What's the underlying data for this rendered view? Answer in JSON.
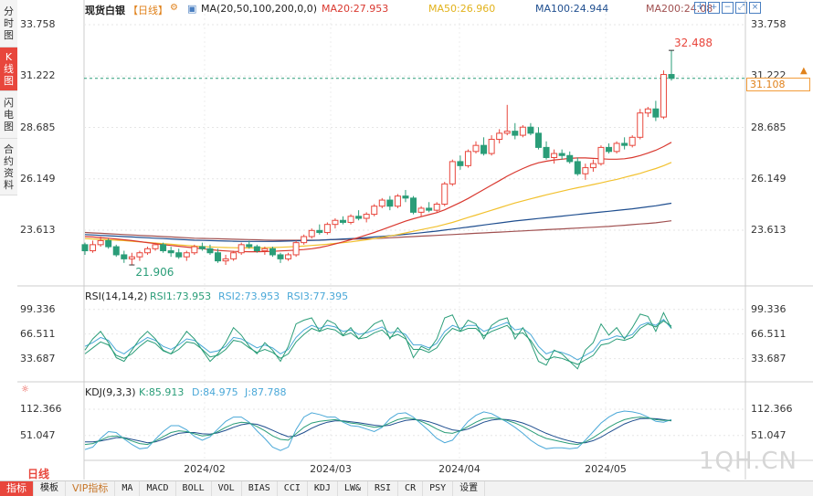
{
  "side_tabs": [
    {
      "label": [
        "分",
        "时",
        "图"
      ],
      "active": false
    },
    {
      "label": [
        "K",
        "线",
        "图"
      ],
      "active": true
    },
    {
      "label": [
        "闪",
        "电",
        "图"
      ],
      "active": false
    },
    {
      "label": [
        "合",
        "约",
        "资",
        "料"
      ],
      "active": false
    }
  ],
  "header": {
    "instrument": "现货白银",
    "period": "【日线】",
    "ma_settings": "MA(20,50,100,200,0,0)",
    "ma20": "MA20:27.953",
    "ma50": "MA50:26.960",
    "ma100": "MA100:24.944",
    "ma200": "MA200:24.08"
  },
  "toolbar_icons": [
    "crosshair-icon",
    "zoom-in-icon",
    "zoom-out-icon",
    "expand-icon",
    "close-icon"
  ],
  "colors": {
    "up": "#e8463c",
    "down": "#2a9d78",
    "ma20": "#d9382f",
    "ma50": "#f2c12e",
    "ma100": "#1f4e8f",
    "ma200": "#a05050",
    "rsi1": "#2a9d78",
    "rsi2": "#4aa8d8",
    "rsi3": "#2a9d78",
    "accent_orange": "#e0821c"
  },
  "price_axis": {
    "ticks": [
      "33.758",
      "31.222",
      "28.685",
      "26.149",
      "23.613"
    ],
    "current_price": "31.108",
    "high_label": "32.488",
    "low_label": "21.906"
  },
  "date_axis": [
    "2024/02",
    "2024/03",
    "2024/04",
    "2024/05"
  ],
  "rsi_panel": {
    "title": "RSI(14,14,2)",
    "rsi1": "RSI1:73.953",
    "rsi2": "RSI2:73.953",
    "rsi3": "RSI3:77.395",
    "ticks": [
      "99.336",
      "66.511",
      "33.687"
    ]
  },
  "kdj_panel": {
    "title": "KDJ(9,3,3)",
    "k": "K:85.913",
    "d": "D:84.975",
    "j": "J:87.788",
    "ticks": [
      "112.366",
      "51.047"
    ]
  },
  "bottom_bar": {
    "period_tag": "日线",
    "buttons": [
      "指标",
      "模板",
      "VIP指标",
      "MA",
      "MACD",
      "BOLL",
      "VOL",
      "BIAS",
      "CCI",
      "KDJ",
      "LW&",
      "RSI",
      "CR",
      "PSY",
      "设置"
    ]
  },
  "watermark": "1QH.CN",
  "chart_data": {
    "type": "candlestick",
    "title": "现货白银 【日线】",
    "ylim": [
      21.0,
      34.3
    ],
    "ohlc": [
      [
        22.9,
        23.0,
        22.4,
        22.6
      ],
      [
        22.6,
        23.1,
        22.5,
        22.9
      ],
      [
        22.9,
        23.3,
        22.8,
        23.1
      ],
      [
        23.1,
        23.2,
        22.7,
        22.8
      ],
      [
        22.8,
        22.9,
        22.3,
        22.4
      ],
      [
        22.4,
        22.6,
        22.0,
        22.2
      ],
      [
        22.2,
        22.5,
        21.9,
        22.3
      ],
      [
        22.3,
        22.6,
        22.1,
        22.5
      ],
      [
        22.5,
        22.8,
        22.4,
        22.7
      ],
      [
        22.7,
        23.0,
        22.6,
        22.9
      ],
      [
        22.9,
        23.0,
        22.5,
        22.6
      ],
      [
        22.6,
        22.8,
        22.3,
        22.5
      ],
      [
        22.5,
        22.7,
        22.2,
        22.3
      ],
      [
        22.3,
        22.6,
        22.1,
        22.5
      ],
      [
        22.5,
        22.9,
        22.4,
        22.8
      ],
      [
        22.8,
        23.0,
        22.6,
        22.7
      ],
      [
        22.7,
        22.9,
        22.4,
        22.5
      ],
      [
        22.5,
        22.7,
        22.0,
        22.1
      ],
      [
        22.1,
        22.4,
        21.9,
        22.2
      ],
      [
        22.2,
        22.6,
        22.1,
        22.5
      ],
      [
        22.5,
        23.0,
        22.4,
        22.9
      ],
      [
        22.9,
        23.1,
        22.7,
        22.8
      ],
      [
        22.8,
        22.9,
        22.5,
        22.6
      ],
      [
        22.6,
        22.8,
        22.4,
        22.7
      ],
      [
        22.7,
        22.8,
        22.3,
        22.4
      ],
      [
        22.4,
        22.5,
        22.0,
        22.2
      ],
      [
        22.2,
        22.5,
        22.1,
        22.4
      ],
      [
        22.4,
        23.1,
        22.3,
        23.0
      ],
      [
        23.0,
        23.4,
        22.9,
        23.3
      ],
      [
        23.3,
        23.7,
        23.2,
        23.6
      ],
      [
        23.6,
        23.9,
        23.4,
        23.5
      ],
      [
        23.5,
        24.0,
        23.4,
        23.9
      ],
      [
        23.9,
        24.2,
        23.7,
        24.1
      ],
      [
        24.1,
        24.3,
        23.9,
        24.0
      ],
      [
        24.0,
        24.4,
        23.9,
        24.3
      ],
      [
        24.3,
        24.6,
        24.1,
        24.2
      ],
      [
        24.2,
        24.5,
        24.0,
        24.4
      ],
      [
        24.4,
        24.9,
        24.3,
        24.8
      ],
      [
        24.8,
        25.2,
        24.7,
        25.1
      ],
      [
        25.1,
        25.3,
        24.6,
        24.8
      ],
      [
        24.8,
        25.4,
        24.7,
        25.3
      ],
      [
        25.3,
        25.6,
        25.0,
        25.2
      ],
      [
        25.2,
        25.3,
        24.4,
        24.5
      ],
      [
        24.5,
        24.8,
        24.3,
        24.7
      ],
      [
        24.7,
        25.0,
        24.5,
        24.6
      ],
      [
        24.6,
        25.0,
        24.5,
        24.9
      ],
      [
        24.9,
        26.0,
        24.8,
        25.9
      ],
      [
        25.9,
        27.1,
        25.8,
        27.0
      ],
      [
        27.0,
        27.3,
        26.6,
        26.8
      ],
      [
        26.8,
        27.6,
        26.7,
        27.5
      ],
      [
        27.5,
        28.0,
        27.4,
        27.8
      ],
      [
        27.8,
        28.2,
        27.3,
        27.4
      ],
      [
        27.4,
        28.3,
        27.3,
        28.1
      ],
      [
        28.1,
        28.6,
        27.9,
        28.4
      ],
      [
        28.4,
        29.8,
        28.3,
        28.5
      ],
      [
        28.5,
        28.9,
        28.1,
        28.3
      ],
      [
        28.3,
        28.8,
        28.2,
        28.7
      ],
      [
        28.7,
        28.9,
        28.3,
        28.4
      ],
      [
        28.4,
        28.7,
        27.6,
        27.7
      ],
      [
        27.7,
        28.0,
        27.1,
        27.2
      ],
      [
        27.2,
        27.6,
        26.9,
        27.4
      ],
      [
        27.4,
        27.6,
        27.1,
        27.3
      ],
      [
        27.3,
        27.5,
        26.9,
        27.0
      ],
      [
        27.0,
        27.2,
        26.3,
        26.4
      ],
      [
        26.4,
        26.9,
        26.1,
        26.7
      ],
      [
        26.7,
        27.1,
        26.5,
        26.9
      ],
      [
        26.9,
        27.8,
        26.8,
        27.7
      ],
      [
        27.7,
        27.9,
        27.4,
        27.5
      ],
      [
        27.5,
        28.0,
        27.4,
        27.9
      ],
      [
        27.9,
        28.2,
        27.6,
        27.8
      ],
      [
        27.8,
        28.3,
        27.7,
        28.2
      ],
      [
        28.2,
        29.6,
        28.1,
        29.4
      ],
      [
        29.4,
        29.7,
        29.2,
        29.6
      ],
      [
        29.6,
        30.0,
        29.0,
        29.2
      ],
      [
        29.2,
        31.5,
        29.1,
        31.3
      ],
      [
        31.3,
        32.49,
        31.0,
        31.108
      ]
    ],
    "ma20": [
      23.3,
      23.28,
      23.25,
      23.22,
      23.18,
      23.14,
      23.1,
      23.05,
      23.0,
      22.95,
      22.9,
      22.86,
      22.82,
      22.78,
      22.74,
      22.7,
      22.66,
      22.62,
      22.59,
      22.57,
      22.56,
      22.55,
      22.55,
      22.56,
      22.57,
      22.59,
      22.61,
      22.63,
      22.66,
      22.7,
      22.76,
      22.84,
      22.94,
      23.04,
      23.14,
      23.26,
      23.38,
      23.5,
      23.64,
      23.78,
      23.92,
      24.06,
      24.18,
      24.28,
      24.38,
      24.48,
      24.62,
      24.8,
      24.98,
      25.18,
      25.4,
      25.62,
      25.84,
      26.06,
      26.28,
      26.48,
      26.66,
      26.82,
      26.94,
      27.02,
      27.08,
      27.12,
      27.16,
      27.18,
      27.18,
      27.16,
      27.14,
      27.12,
      27.12,
      27.14,
      27.2,
      27.3,
      27.42,
      27.56,
      27.74,
      27.953
    ],
    "ma50": [
      23.2,
      23.18,
      23.16,
      23.14,
      23.12,
      23.1,
      23.07,
      23.04,
      23.01,
      22.98,
      22.95,
      22.92,
      22.89,
      22.86,
      22.83,
      22.81,
      22.79,
      22.77,
      22.76,
      22.75,
      22.74,
      22.74,
      22.74,
      22.75,
      22.76,
      22.77,
      22.79,
      22.81,
      22.83,
      22.86,
      22.89,
      22.92,
      22.96,
      23.0,
      23.04,
      23.09,
      23.14,
      23.2,
      23.26,
      23.33,
      23.4,
      23.48,
      23.56,
      23.64,
      23.72,
      23.8,
      23.9,
      24.0,
      24.12,
      24.24,
      24.36,
      24.48,
      24.6,
      24.72,
      24.84,
      24.96,
      25.06,
      25.16,
      25.26,
      25.36,
      25.45,
      25.54,
      25.63,
      25.71,
      25.79,
      25.87,
      25.95,
      26.04,
      26.12,
      26.22,
      26.32,
      26.42,
      26.54,
      26.66,
      26.8,
      26.96
    ],
    "ma100": [
      23.4,
      23.38,
      23.36,
      23.34,
      23.32,
      23.3,
      23.28,
      23.26,
      23.24,
      23.22,
      23.2,
      23.18,
      23.16,
      23.14,
      23.12,
      23.11,
      23.1,
      23.09,
      23.08,
      23.07,
      23.06,
      23.06,
      23.06,
      23.06,
      23.06,
      23.07,
      23.08,
      23.09,
      23.1,
      23.11,
      23.12,
      23.14,
      23.16,
      23.18,
      23.2,
      23.22,
      23.25,
      23.28,
      23.31,
      23.34,
      23.37,
      23.41,
      23.45,
      23.49,
      23.53,
      23.57,
      23.62,
      23.67,
      23.72,
      23.77,
      23.82,
      23.87,
      23.92,
      23.97,
      24.02,
      24.07,
      24.11,
      24.15,
      24.19,
      24.23,
      24.27,
      24.31,
      24.35,
      24.39,
      24.43,
      24.47,
      24.51,
      24.55,
      24.59,
      24.63,
      24.67,
      24.72,
      24.77,
      24.82,
      24.88,
      24.944
    ],
    "ma200": [
      23.5,
      23.48,
      23.46,
      23.44,
      23.42,
      23.4,
      23.38,
      23.36,
      23.34,
      23.32,
      23.3,
      23.28,
      23.26,
      23.24,
      23.22,
      23.21,
      23.2,
      23.19,
      23.18,
      23.17,
      23.16,
      23.15,
      23.14,
      23.13,
      23.12,
      23.12,
      23.12,
      23.12,
      23.12,
      23.12,
      23.13,
      23.14,
      23.15,
      23.16,
      23.17,
      23.18,
      23.19,
      23.2,
      23.22,
      23.24,
      23.26,
      23.28,
      23.3,
      23.32,
      23.34,
      23.36,
      23.38,
      23.4,
      23.42,
      23.44,
      23.46,
      23.48,
      23.5,
      23.52,
      23.54,
      23.56,
      23.58,
      23.6,
      23.62,
      23.64,
      23.66,
      23.68,
      23.7,
      23.72,
      23.74,
      23.76,
      23.78,
      23.8,
      23.83,
      23.86,
      23.89,
      23.92,
      23.95,
      23.98,
      24.03,
      24.08
    ],
    "rsi": {
      "ylim": [
        10,
        110
      ],
      "rsi1": [
        45,
        60,
        70,
        55,
        35,
        30,
        45,
        60,
        70,
        60,
        45,
        40,
        55,
        70,
        60,
        45,
        30,
        40,
        55,
        75,
        65,
        50,
        40,
        55,
        45,
        30,
        50,
        80,
        85,
        88,
        70,
        85,
        80,
        65,
        75,
        60,
        70,
        80,
        85,
        60,
        75,
        62,
        35,
        50,
        45,
        60,
        88,
        92,
        70,
        85,
        80,
        60,
        78,
        85,
        88,
        60,
        75,
        55,
        30,
        25,
        45,
        40,
        30,
        20,
        45,
        55,
        80,
        65,
        75,
        60,
        75,
        93,
        90,
        70,
        95,
        74
      ],
      "rsi2": [
        50,
        55,
        62,
        58,
        45,
        40,
        48,
        55,
        62,
        58,
        50,
        46,
        52,
        60,
        58,
        50,
        42,
        44,
        50,
        62,
        60,
        54,
        48,
        52,
        48,
        40,
        46,
        62,
        72,
        78,
        74,
        78,
        76,
        70,
        72,
        66,
        68,
        72,
        76,
        68,
        70,
        66,
        52,
        52,
        48,
        54,
        70,
        78,
        74,
        78,
        78,
        70,
        74,
        78,
        82,
        72,
        74,
        66,
        50,
        40,
        44,
        42,
        38,
        32,
        38,
        44,
        58,
        60,
        64,
        62,
        66,
        78,
        82,
        78,
        86,
        74
      ],
      "rsi3": [
        40,
        48,
        56,
        52,
        38,
        34,
        40,
        50,
        58,
        54,
        44,
        40,
        46,
        56,
        54,
        46,
        36,
        38,
        46,
        58,
        56,
        48,
        42,
        46,
        42,
        34,
        40,
        56,
        66,
        74,
        70,
        74,
        72,
        64,
        68,
        60,
        62,
        68,
        72,
        62,
        66,
        60,
        46,
        46,
        42,
        48,
        64,
        74,
        70,
        74,
        74,
        64,
        70,
        74,
        78,
        66,
        68,
        58,
        42,
        32,
        36,
        34,
        30,
        26,
        32,
        38,
        52,
        54,
        60,
        58,
        62,
        74,
        80,
        76,
        84,
        77
      ]
    },
    "kdj": {
      "ylim": [
        -5,
        140
      ],
      "k": [
        30,
        32,
        40,
        48,
        50,
        45,
        38,
        32,
        30,
        38,
        48,
        58,
        62,
        60,
        55,
        50,
        52,
        60,
        70,
        78,
        82,
        80,
        72,
        62,
        50,
        42,
        40,
        55,
        70,
        80,
        84,
        86,
        88,
        84,
        80,
        78,
        74,
        70,
        72,
        80,
        88,
        92,
        90,
        84,
        76,
        66,
        58,
        56,
        62,
        72,
        82,
        90,
        92,
        90,
        86,
        80,
        72,
        62,
        52,
        44,
        40,
        36,
        32,
        30,
        36,
        46,
        58,
        70,
        80,
        88,
        92,
        94,
        92,
        88,
        86,
        86
      ],
      "d": [
        36,
        36,
        38,
        42,
        46,
        46,
        42,
        38,
        34,
        36,
        42,
        50,
        56,
        58,
        58,
        55,
        54,
        57,
        63,
        70,
        76,
        79,
        77,
        71,
        63,
        55,
        48,
        50,
        58,
        68,
        76,
        82,
        85,
        85,
        83,
        81,
        78,
        75,
        73,
        75,
        81,
        86,
        88,
        87,
        83,
        77,
        70,
        64,
        62,
        66,
        74,
        82,
        87,
        89,
        88,
        85,
        80,
        73,
        64,
        56,
        49,
        43,
        38,
        34,
        34,
        39,
        47,
        58,
        68,
        78,
        85,
        90,
        91,
        90,
        88,
        85
      ],
      "j": [
        18,
        24,
        44,
        60,
        58,
        43,
        30,
        20,
        22,
        42,
        60,
        74,
        74,
        64,
        49,
        40,
        48,
        66,
        84,
        94,
        94,
        82,
        62,
        44,
        24,
        16,
        24,
        65,
        94,
        104,
        100,
        94,
        94,
        82,
        74,
        72,
        66,
        60,
        70,
        90,
        102,
        104,
        94,
        78,
        62,
        44,
        34,
        40,
        62,
        84,
        98,
        106,
        102,
        92,
        82,
        70,
        56,
        40,
        28,
        20,
        22,
        22,
        20,
        22,
        40,
        60,
        80,
        94,
        104,
        108,
        106,
        102,
        94,
        84,
        82,
        88
      ]
    }
  }
}
